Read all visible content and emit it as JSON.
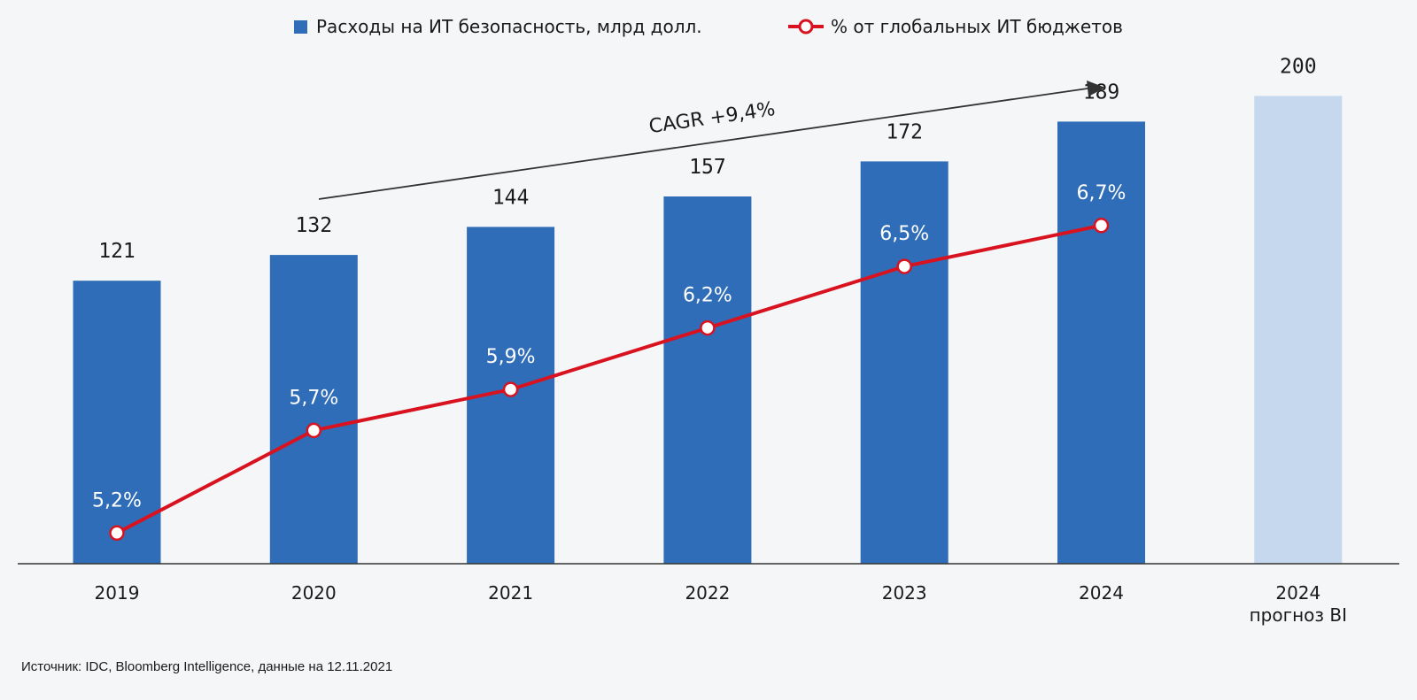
{
  "legend": {
    "bars_label": "Расходы на ИТ безопасность, млрд долл.",
    "line_label": "% от глобальных ИТ бюджетов"
  },
  "source_text": "Источник: IDC, Bloomberg Intelligence, данные на 12.11.2021",
  "colors": {
    "bar": "#2f6db8",
    "bar_forecast": "#c5d8ed",
    "line": "#d9121f",
    "axis": "#333333",
    "background": "#f4f6f8"
  },
  "chart_data": {
    "type": "bar",
    "categories": [
      "2019",
      "2020",
      "2021",
      "2022",
      "2023",
      "2024",
      "2024\nпрогноз BI"
    ],
    "series": [
      {
        "name": "Расходы на ИТ безопасность, млрд долл.",
        "type": "bar",
        "values": [
          121,
          132,
          144,
          157,
          172,
          189,
          200
        ],
        "labels": [
          "121",
          "132",
          "144",
          "157",
          "172",
          "189",
          "200"
        ],
        "forecast": [
          false,
          false,
          false,
          false,
          false,
          false,
          true
        ]
      },
      {
        "name": "% от глобальных ИТ бюджетов",
        "type": "line",
        "values": [
          5.2,
          5.7,
          5.9,
          6.2,
          6.5,
          6.7,
          null
        ],
        "labels": [
          "5,2%",
          "5,7%",
          "5,9%",
          "6,2%",
          "6,5%",
          "6,7%",
          ""
        ]
      }
    ],
    "annotation": "CAGR +9,4%",
    "xlabel": "",
    "ylabel": "",
    "ylim": [
      0,
      241
    ],
    "line_ylim": [
      5.05,
      7.8
    ],
    "grid": false,
    "legend_position": "top"
  }
}
